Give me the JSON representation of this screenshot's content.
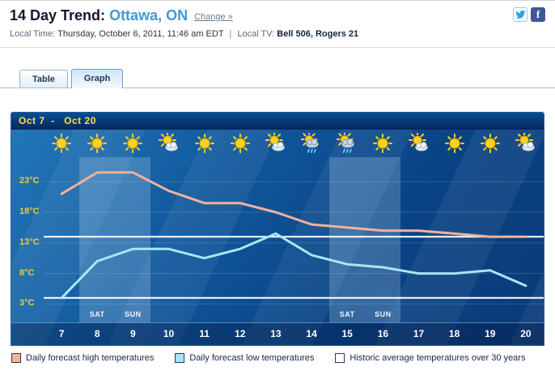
{
  "header": {
    "title_prefix": "14 Day Trend:",
    "city": "Ottawa, ON",
    "change_link": "Change »",
    "local_time_label": "Local Time:",
    "local_time_value": "Thursday, October 6, 2011, 11:46 am EDT",
    "separator": "|",
    "local_tv_label": "Local TV:",
    "local_tv_value": "Bell 506, Rogers 21"
  },
  "social": {
    "twitter_name": "twitter",
    "facebook_glyph": "f"
  },
  "tabs": {
    "table": "Table",
    "graph": "Graph"
  },
  "chart_data": {
    "type": "line",
    "title": "Oct 7  -   Oct 20",
    "x": [
      7,
      8,
      9,
      10,
      11,
      12,
      13,
      14,
      15,
      16,
      17,
      18,
      19,
      20
    ],
    "series": [
      {
        "name": "Daily forecast high temperatures",
        "color": "#f2b29b",
        "values": [
          21,
          24.5,
          24.5,
          21.5,
          19.5,
          19.5,
          18,
          16,
          15.5,
          15,
          15,
          14.5,
          14,
          14
        ]
      },
      {
        "name": "Daily forecast low temperatures",
        "color": "#a8e6f5",
        "values": [
          4,
          10,
          12,
          12,
          10.5,
          12,
          14.5,
          11,
          9.5,
          9,
          8,
          8,
          8.5,
          6
        ]
      }
    ],
    "historic_average_lines": [
      14,
      4
    ],
    "historic_line_color": "#ffffff",
    "ylabels": [
      "23°C",
      "18°C",
      "13°C",
      "8°C",
      "3°C"
    ],
    "yvalues": [
      23,
      18,
      13,
      8,
      3
    ],
    "ylim": [
      0,
      27
    ],
    "grid": "subtle-horizontal",
    "legend_position": "bottom",
    "weekends": [
      [
        8,
        9
      ],
      [
        15,
        16
      ]
    ],
    "weekend_labels": [
      "SAT",
      "SUN"
    ],
    "icons": [
      "sunny",
      "sunny",
      "sunny",
      "partly-cloudy",
      "sunny",
      "sunny",
      "partly-cloudy",
      "rain",
      "rain",
      "sunny",
      "partly-cloudy",
      "sunny",
      "sunny",
      "partly-cloudy"
    ]
  },
  "legend": [
    {
      "label": "Daily forecast high temperatures",
      "color": "#f2b29b"
    },
    {
      "label": "Daily forecast low temperatures",
      "color": "#a8e6f5"
    },
    {
      "label": "Historic average temperatures over 30 years",
      "color": "#ffffff"
    }
  ]
}
